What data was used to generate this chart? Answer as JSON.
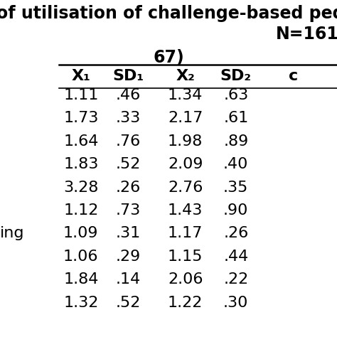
{
  "title_line1": "of utilisation of challenge-based pedag",
  "title_line2": "N=161",
  "subtitle": "67)",
  "col_headers": [
    "X₁",
    "SD₁",
    "X₂",
    "SD₂",
    "c"
  ],
  "row_labels": [
    "",
    "",
    "",
    "",
    "",
    "",
    "ing",
    "",
    "",
    ""
  ],
  "rows": [
    [
      "1.11",
      ".46",
      "1.34",
      ".63"
    ],
    [
      "1.73",
      ".33",
      "2.17",
      ".61"
    ],
    [
      "1.64",
      ".76",
      "1.98",
      ".89"
    ],
    [
      "1.83",
      ".52",
      "2.09",
      ".40"
    ],
    [
      "3.28",
      ".26",
      "2.76",
      ".35"
    ],
    [
      "1.12",
      ".73",
      "1.43",
      ".90"
    ],
    [
      "1.09",
      ".31",
      "1.17",
      ".26"
    ],
    [
      "1.06",
      ".29",
      "1.15",
      ".44"
    ],
    [
      "1.84",
      ".14",
      "2.06",
      ".22"
    ],
    [
      "1.32",
      ".52",
      "1.22",
      ".30"
    ]
  ],
  "bg_color": "#ffffff",
  "text_color": "#000000",
  "title_fontsize": 17,
  "header_fontsize": 16,
  "data_fontsize": 16,
  "subtitle_fontsize": 17
}
